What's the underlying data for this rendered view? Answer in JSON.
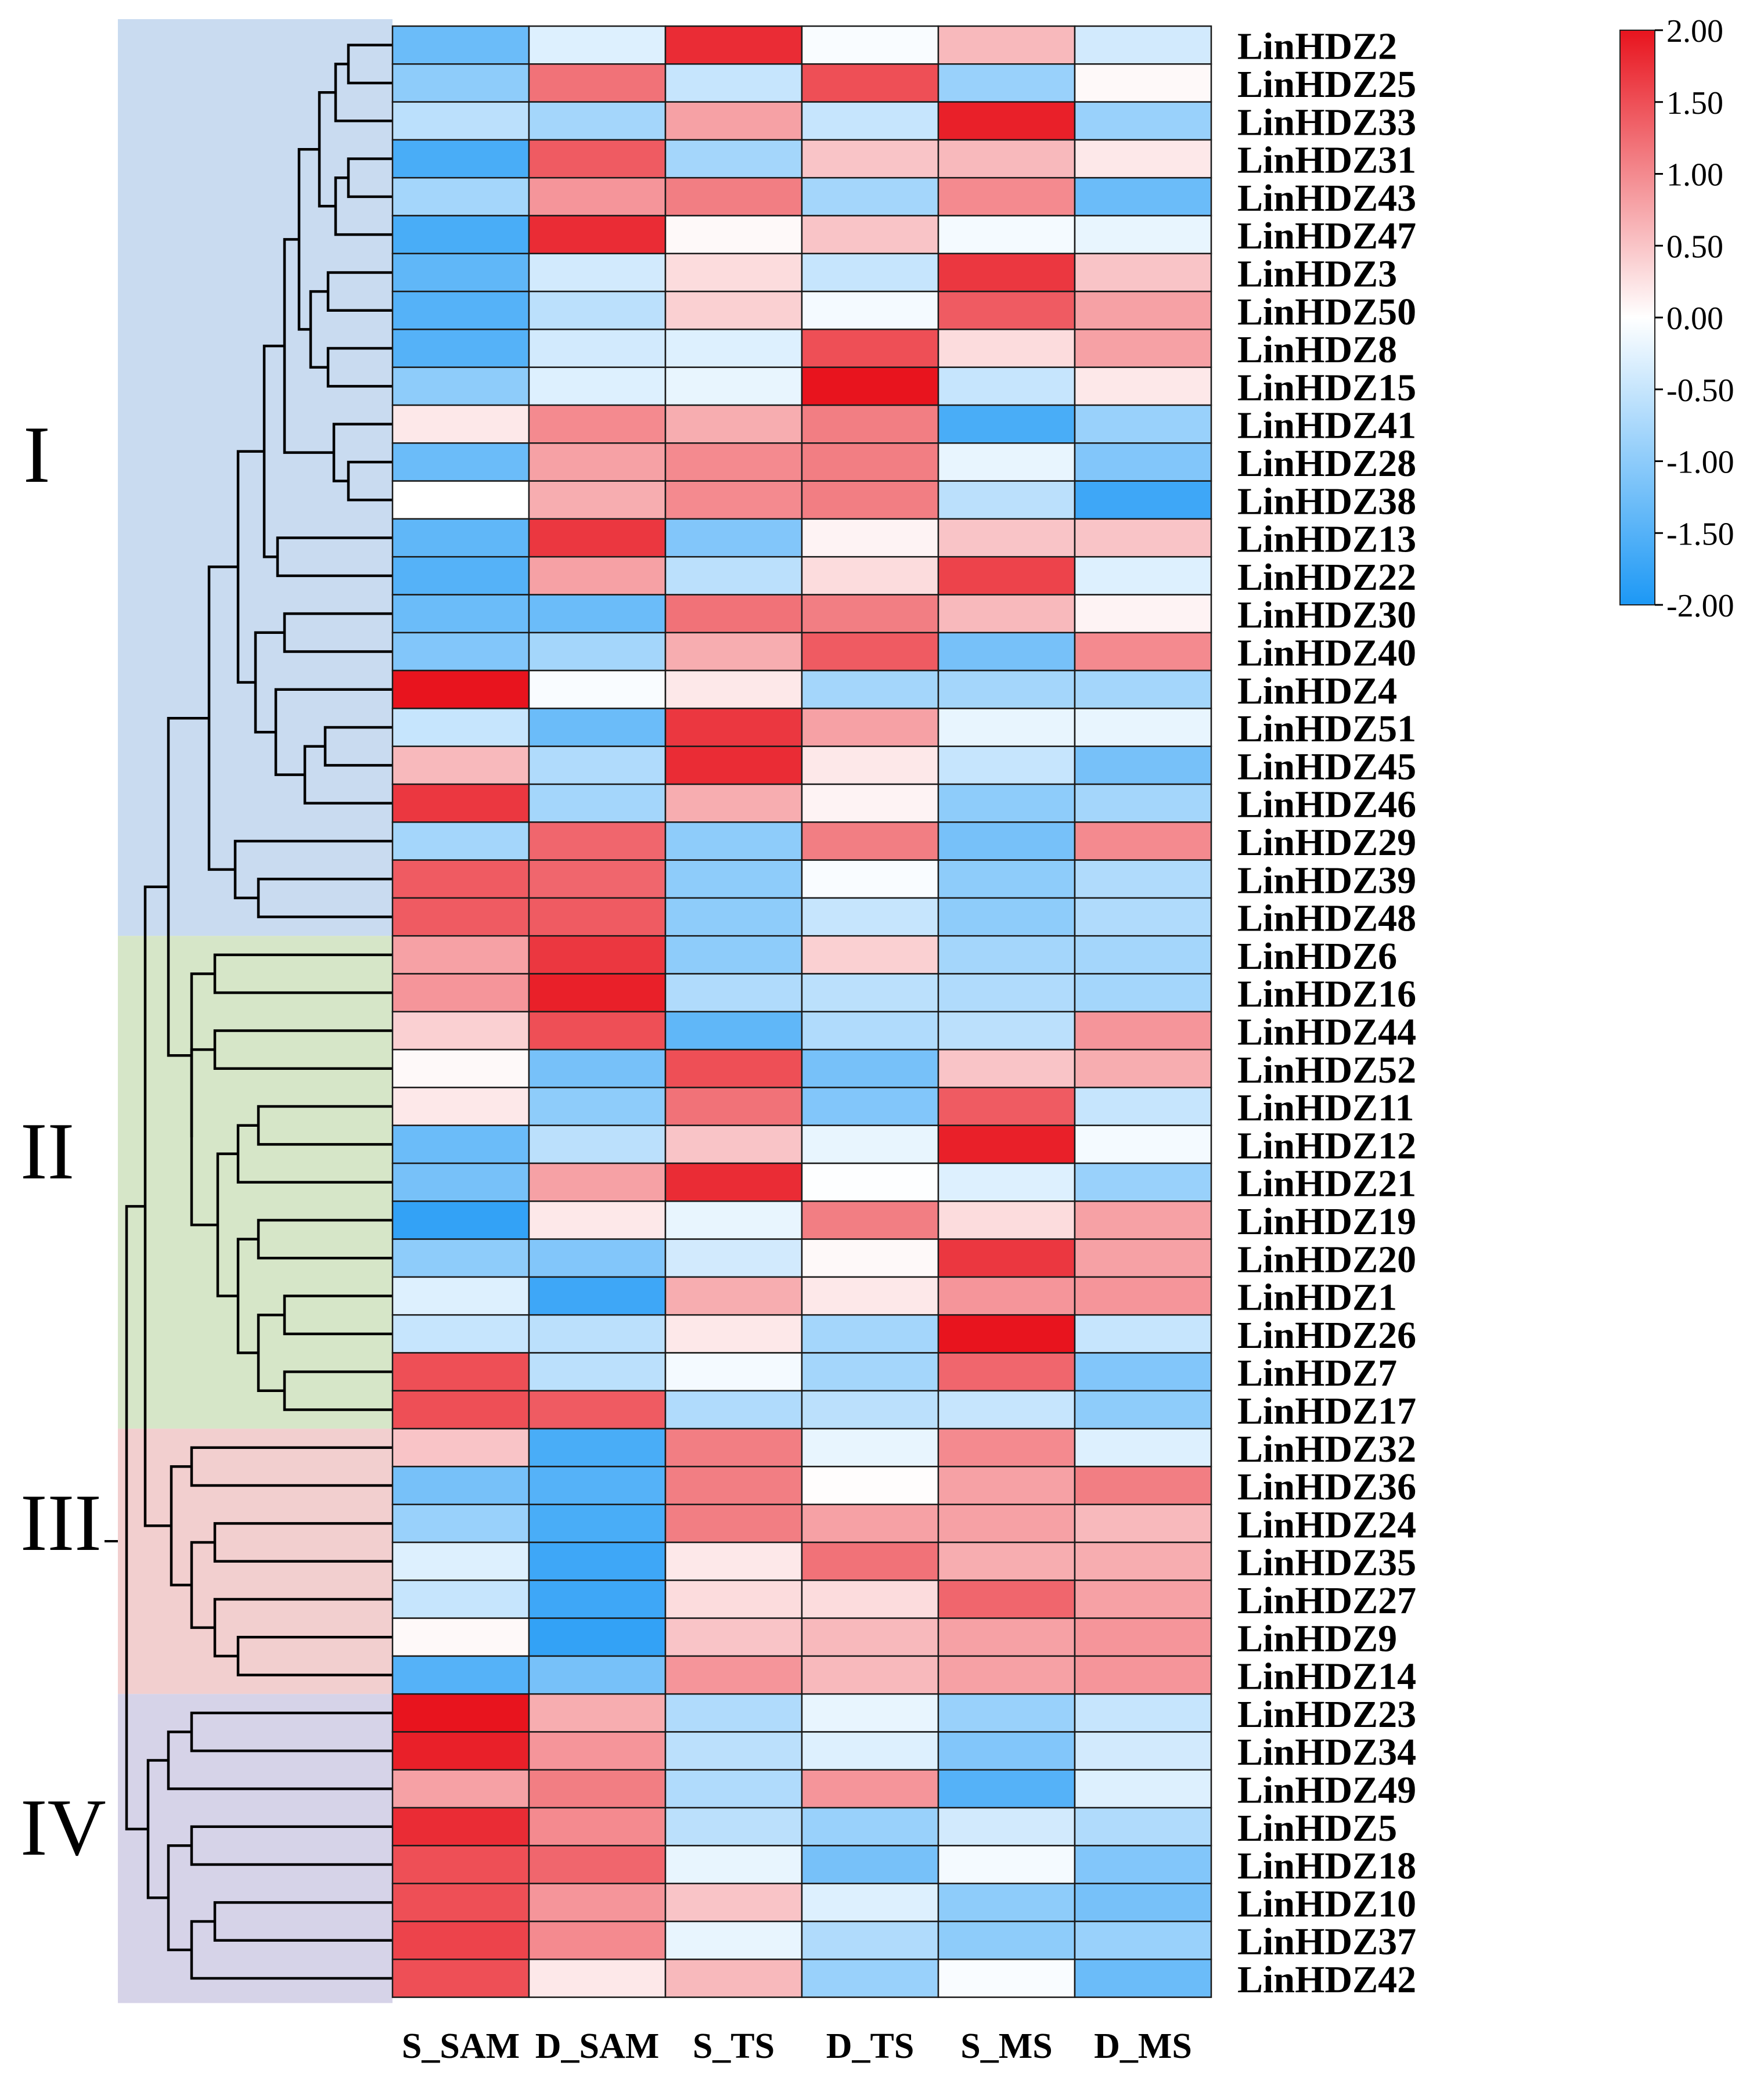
{
  "chart_data": {
    "type": "heatmap",
    "title": "",
    "columns": [
      "S_SAM",
      "D_SAM",
      "S_TS",
      "D_TS",
      "S_MS",
      "D_MS"
    ],
    "rows": [
      "LinHDZ2",
      "LinHDZ25",
      "LinHDZ33",
      "LinHDZ31",
      "LinHDZ43",
      "LinHDZ47",
      "LinHDZ3",
      "LinHDZ50",
      "LinHDZ8",
      "LinHDZ15",
      "LinHDZ41",
      "LinHDZ28",
      "LinHDZ38",
      "LinHDZ13",
      "LinHDZ22",
      "LinHDZ30",
      "LinHDZ40",
      "LinHDZ4",
      "LinHDZ51",
      "LinHDZ45",
      "LinHDZ46",
      "LinHDZ29",
      "LinHDZ39",
      "LinHDZ48",
      "LinHDZ6",
      "LinHDZ16",
      "LinHDZ44",
      "LinHDZ52",
      "LinHDZ11",
      "LinHDZ12",
      "LinHDZ21",
      "LinHDZ19",
      "LinHDZ20",
      "LinHDZ1",
      "LinHDZ26",
      "LinHDZ7",
      "LinHDZ17",
      "LinHDZ32",
      "LinHDZ36",
      "LinHDZ24",
      "LinHDZ35",
      "LinHDZ27",
      "LinHDZ9",
      "LinHDZ14",
      "LinHDZ23",
      "LinHDZ34",
      "LinHDZ49",
      "LinHDZ5",
      "LinHDZ18",
      "LinHDZ10",
      "LinHDZ37",
      "LinHDZ42"
    ],
    "values": [
      [
        -1.3,
        -0.3,
        1.8,
        -0.05,
        0.6,
        -0.4
      ],
      [
        -1.0,
        1.2,
        -0.5,
        1.5,
        -0.9,
        0.05
      ],
      [
        -0.6,
        -0.8,
        0.8,
        -0.5,
        1.9,
        -0.9
      ],
      [
        -1.6,
        1.4,
        -0.8,
        0.5,
        0.6,
        0.2
      ],
      [
        -0.8,
        0.9,
        1.1,
        -0.8,
        1.0,
        -1.3
      ],
      [
        -1.6,
        1.8,
        0.05,
        0.5,
        -0.1,
        -0.2
      ],
      [
        -1.4,
        -0.4,
        0.3,
        -0.5,
        1.7,
        0.5
      ],
      [
        -1.5,
        -0.6,
        0.4,
        -0.1,
        1.4,
        0.8
      ],
      [
        -1.5,
        -0.4,
        -0.3,
        1.5,
        0.3,
        0.8
      ],
      [
        -1.0,
        -0.3,
        -0.2,
        2.0,
        -0.5,
        0.2
      ],
      [
        0.2,
        1.0,
        0.7,
        1.1,
        -1.6,
        -0.9
      ],
      [
        -1.3,
        0.8,
        1.0,
        1.1,
        -0.2,
        -1.1
      ],
      [
        0.0,
        0.7,
        1.0,
        1.1,
        -0.6,
        -1.7
      ],
      [
        -1.4,
        1.7,
        -1.1,
        0.1,
        0.5,
        0.5
      ],
      [
        -1.5,
        0.8,
        -0.6,
        0.3,
        1.6,
        -0.3
      ],
      [
        -1.3,
        -1.3,
        1.2,
        1.1,
        0.6,
        0.1
      ],
      [
        -1.1,
        -0.8,
        0.7,
        1.4,
        -1.2,
        1.0
      ],
      [
        2.0,
        -0.05,
        0.2,
        -0.8,
        -0.8,
        -0.8
      ],
      [
        -0.5,
        -1.3,
        1.7,
        0.8,
        -0.2,
        -0.2
      ],
      [
        0.6,
        -0.7,
        1.8,
        0.2,
        -0.5,
        -1.2
      ],
      [
        1.7,
        -0.8,
        0.7,
        0.1,
        -1.0,
        -0.8
      ],
      [
        -0.8,
        1.3,
        -1.0,
        1.1,
        -1.2,
        1.0
      ],
      [
        1.4,
        1.3,
        -1.0,
        -0.05,
        -1.0,
        -0.7
      ],
      [
        1.4,
        1.4,
        -1.0,
        -0.5,
        -1.0,
        -0.7
      ],
      [
        0.8,
        1.7,
        -1.0,
        0.4,
        -0.8,
        -0.8
      ],
      [
        0.9,
        1.9,
        -0.7,
        -0.6,
        -0.7,
        -0.8
      ],
      [
        0.4,
        1.5,
        -1.4,
        -0.7,
        -0.6,
        0.9
      ],
      [
        0.05,
        -1.2,
        1.5,
        -1.2,
        0.5,
        0.7
      ],
      [
        0.2,
        -1.0,
        1.2,
        -1.1,
        1.4,
        -0.5
      ],
      [
        -1.3,
        -0.6,
        0.5,
        -0.2,
        1.9,
        -0.1
      ],
      [
        -1.2,
        0.8,
        1.8,
        -0.02,
        -0.3,
        -0.9
      ],
      [
        -1.8,
        0.2,
        -0.2,
        1.1,
        0.3,
        0.8
      ],
      [
        -1.0,
        -1.1,
        -0.4,
        0.05,
        1.7,
        0.8
      ],
      [
        -0.3,
        -1.7,
        0.7,
        0.2,
        0.9,
        0.9
      ],
      [
        -0.5,
        -0.6,
        0.2,
        -0.8,
        2.0,
        -0.5
      ],
      [
        1.5,
        -0.6,
        -0.1,
        -0.8,
        1.3,
        -1.1
      ],
      [
        1.5,
        1.4,
        -0.7,
        -0.6,
        -0.5,
        -1.0
      ],
      [
        0.5,
        -1.6,
        1.1,
        -0.2,
        1.0,
        -0.3
      ],
      [
        -1.2,
        -1.5,
        1.1,
        0.02,
        0.8,
        1.1
      ],
      [
        -0.9,
        -1.6,
        1.1,
        0.8,
        0.8,
        0.6
      ],
      [
        -0.3,
        -1.7,
        0.2,
        1.2,
        0.7,
        0.7
      ],
      [
        -0.5,
        -1.7,
        0.3,
        0.3,
        1.3,
        0.8
      ],
      [
        0.05,
        -1.8,
        0.5,
        0.6,
        0.8,
        0.9
      ],
      [
        -1.5,
        -1.2,
        0.9,
        0.6,
        0.8,
        0.9
      ],
      [
        2.0,
        0.7,
        -0.7,
        -0.2,
        -0.9,
        -0.5
      ],
      [
        1.9,
        0.9,
        -0.6,
        -0.3,
        -1.1,
        -0.4
      ],
      [
        0.8,
        1.1,
        -0.7,
        0.9,
        -1.5,
        -0.3
      ],
      [
        1.8,
        1.0,
        -0.6,
        -0.9,
        -0.4,
        -0.7
      ],
      [
        1.5,
        1.3,
        -0.2,
        -1.2,
        -0.1,
        -1.1
      ],
      [
        1.5,
        0.9,
        0.5,
        -0.3,
        -1.0,
        -1.2
      ],
      [
        1.6,
        1.0,
        -0.2,
        -0.7,
        -1.0,
        -0.9
      ],
      [
        1.5,
        0.2,
        0.6,
        -0.9,
        -0.05,
        -1.3
      ]
    ],
    "clusters": [
      {
        "label": "I",
        "first_row": 0,
        "last_row": 23,
        "color": "#c9dbf0"
      },
      {
        "label": "II",
        "first_row": 24,
        "last_row": 36,
        "color": "#d6e6c8"
      },
      {
        "label": "III",
        "first_row": 37,
        "last_row": 43,
        "color": "#f2cfcf"
      },
      {
        "label": "IV",
        "first_row": 44,
        "last_row": 51,
        "color": "#d6d3e8"
      }
    ],
    "colorbar": {
      "min": -2.0,
      "max": 2.0,
      "ticks": [
        "2.00",
        "1.50",
        "1.00",
        "0.50",
        "0.00",
        "-0.50",
        "-1.00",
        "-1.50",
        "-2.00"
      ],
      "high_color": "#e8141e",
      "mid_color": "#ffffff",
      "low_color": "#1c98f5"
    }
  }
}
